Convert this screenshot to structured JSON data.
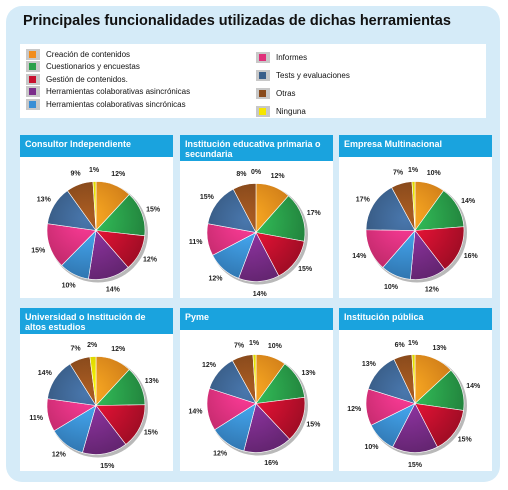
{
  "title": "Principales funcionalidades utilizadas de dichas herramientas",
  "legend_left": [
    {
      "label": "Creación de contenidos",
      "color": "#f28c1c"
    },
    {
      "label": "Cuestionarios y encuestas",
      "color": "#2aa04a"
    },
    {
      "label": "Gestión de contenidos.",
      "color": "#c8102e"
    },
    {
      "label": "Herramientas colaborativas asincrónicas",
      "color": "#7b2d8b"
    },
    {
      "label": "Herramientas colaborativas sincrónicas",
      "color": "#3a8fd6"
    }
  ],
  "legend_right": [
    {
      "label": "Informes",
      "color": "#e0307a"
    },
    {
      "label": "Tests y evaluaciones",
      "color": "#3a5f8a"
    },
    {
      "label": "Otras",
      "color": "#8a4b1c"
    },
    {
      "label": "Ninguna",
      "color": "#f6e600"
    }
  ],
  "chart_data": [
    {
      "type": "pie",
      "title": "Consultor Independiente",
      "labels": [
        "12%",
        "15%",
        "12%",
        "14%",
        "10%",
        "15%",
        "13%",
        "9%",
        "1%"
      ],
      "values": [
        12,
        15,
        12,
        14,
        10,
        15,
        13,
        9,
        1
      ]
    },
    {
      "type": "pie",
      "title": "Institución educativa primaria o secundaria",
      "labels": [
        "12%",
        "17%",
        "15%",
        "14%",
        "12%",
        "11%",
        "15%",
        "8%",
        "0%"
      ],
      "values": [
        12,
        17,
        15,
        14,
        12,
        11,
        15,
        8,
        0
      ]
    },
    {
      "type": "pie",
      "title": "Empresa Multinacional",
      "labels": [
        "10%",
        "14%",
        "16%",
        "12%",
        "10%",
        "14%",
        "17%",
        "7%",
        "1%"
      ],
      "values": [
        10,
        14,
        16,
        12,
        10,
        14,
        17,
        7,
        1
      ]
    },
    {
      "type": "pie",
      "title": "Universidad o Institución de altos estudios",
      "labels": [
        "12%",
        "13%",
        "15%",
        "15%",
        "12%",
        "11%",
        "14%",
        "7%",
        "2%"
      ],
      "values": [
        12,
        13,
        15,
        15,
        12,
        11,
        14,
        7,
        2
      ]
    },
    {
      "type": "pie",
      "title": "Pyme",
      "labels": [
        "10%",
        "13%",
        "15%",
        "16%",
        "12%",
        "14%",
        "12%",
        "7%",
        "1%"
      ],
      "values": [
        10,
        13,
        15,
        16,
        12,
        14,
        12,
        7,
        1
      ]
    },
    {
      "type": "pie",
      "title": "Institución pública",
      "labels": [
        "13%",
        "14%",
        "15%",
        "15%",
        "10%",
        "12%",
        "13%",
        "6%",
        "1%"
      ],
      "values": [
        13,
        14,
        15,
        15,
        10,
        12,
        13,
        6,
        1
      ]
    }
  ]
}
